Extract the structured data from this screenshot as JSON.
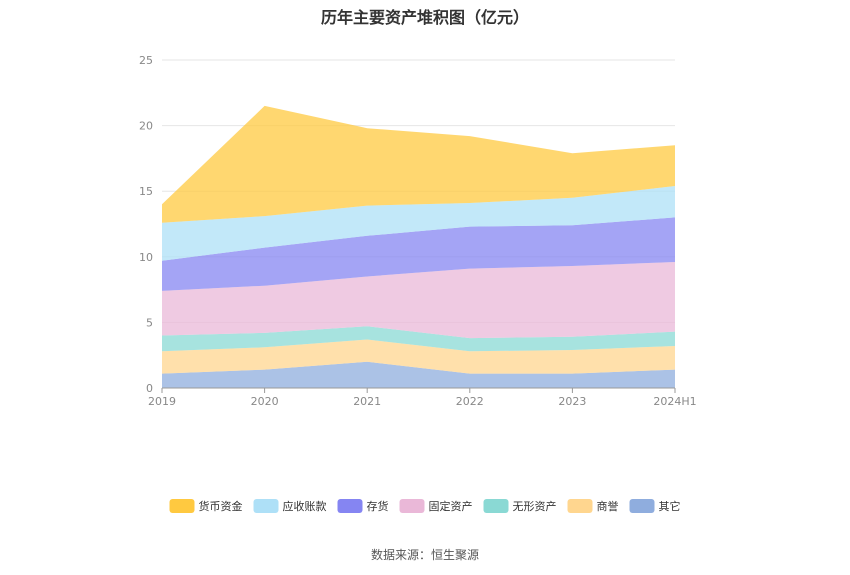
{
  "chart_data": {
    "type": "area",
    "stacked": true,
    "title": "历年主要资产堆积图（亿元）",
    "categories": [
      "2019",
      "2020",
      "2021",
      "2022",
      "2023",
      "2024H1"
    ],
    "ylim": [
      0,
      25
    ],
    "yticks": [
      "0",
      "5",
      "10",
      "15",
      "20",
      "25"
    ],
    "grid": true,
    "legend_position": "bottom",
    "series": [
      {
        "name": "其它",
        "color": "#8fadde",
        "values": [
          1.1,
          1.4,
          2.0,
          1.1,
          1.1,
          1.4
        ]
      },
      {
        "name": "商誉",
        "color": "#ffd68f",
        "values": [
          1.7,
          1.7,
          1.7,
          1.7,
          1.8,
          1.8
        ]
      },
      {
        "name": "无形资产",
        "color": "#8ad9d4",
        "values": [
          1.2,
          1.1,
          1.0,
          1.0,
          1.0,
          1.1
        ]
      },
      {
        "name": "固定资产",
        "color": "#eab8d8",
        "values": [
          3.4,
          3.6,
          3.8,
          5.3,
          5.4,
          5.3
        ]
      },
      {
        "name": "存货",
        "color": "#8585f2",
        "values": [
          2.3,
          2.9,
          3.1,
          3.2,
          3.1,
          3.4
        ]
      },
      {
        "name": "应收账款",
        "color": "#aee0f7",
        "values": [
          2.9,
          2.4,
          2.3,
          1.8,
          2.1,
          2.4
        ]
      },
      {
        "name": "货币资金",
        "color": "#ffc940",
        "values": [
          1.4,
          8.4,
          5.9,
          5.1,
          3.4,
          3.1
        ]
      }
    ],
    "legend_order": [
      "货币资金",
      "应收账款",
      "存货",
      "固定资产",
      "无形资产",
      "商誉",
      "其它"
    ],
    "source": "数据来源：恒生聚源"
  }
}
